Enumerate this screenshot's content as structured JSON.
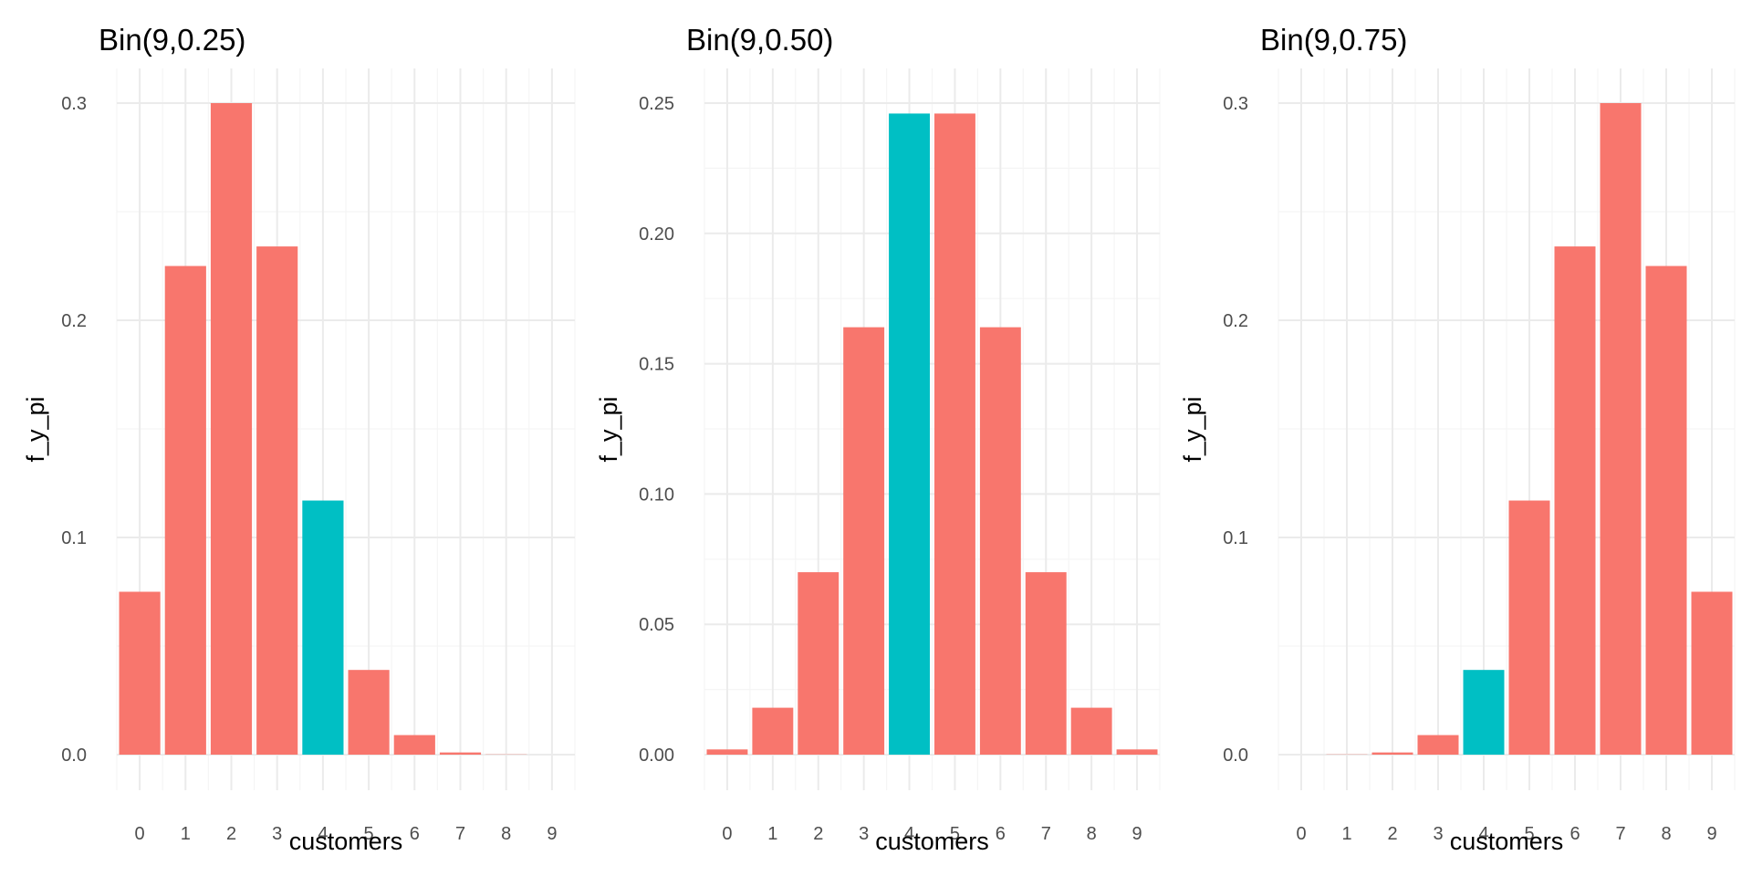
{
  "chart_data": [
    {
      "type": "bar",
      "title": "Bin(9,0.25)",
      "xlabel": "customers",
      "ylabel": "f_y_pi",
      "categories": [
        "0",
        "1",
        "2",
        "3",
        "4",
        "5",
        "6",
        "7",
        "8",
        "9"
      ],
      "values": [
        0.075,
        0.225,
        0.3,
        0.234,
        0.117,
        0.039,
        0.009,
        0.001,
        0.0001,
        0.0
      ],
      "highlight_category": "4",
      "ylim": [
        0,
        0.3
      ],
      "yticks": [
        "0.0",
        "0.1",
        "0.2",
        "0.3"
      ],
      "grid": true
    },
    {
      "type": "bar",
      "title": "Bin(9,0.50)",
      "xlabel": "customers",
      "ylabel": "f_y_pi",
      "categories": [
        "0",
        "1",
        "2",
        "3",
        "4",
        "5",
        "6",
        "7",
        "8",
        "9"
      ],
      "values": [
        0.002,
        0.018,
        0.07,
        0.164,
        0.246,
        0.246,
        0.164,
        0.07,
        0.018,
        0.002
      ],
      "highlight_category": "4",
      "ylim": [
        0,
        0.25
      ],
      "yticks": [
        "0.00",
        "0.05",
        "0.10",
        "0.15",
        "0.20",
        "0.25"
      ],
      "grid": true
    },
    {
      "type": "bar",
      "title": "Bin(9,0.75)",
      "xlabel": "customers",
      "ylabel": "f_y_pi",
      "categories": [
        "0",
        "1",
        "2",
        "3",
        "4",
        "5",
        "6",
        "7",
        "8",
        "9"
      ],
      "values": [
        0.0,
        0.0001,
        0.001,
        0.009,
        0.039,
        0.117,
        0.234,
        0.3,
        0.225,
        0.075
      ],
      "highlight_category": "4",
      "ylim": [
        0,
        0.3
      ],
      "yticks": [
        "0.0",
        "0.1",
        "0.2",
        "0.3"
      ],
      "grid": true
    }
  ],
  "colors": {
    "bar": "#F8766D",
    "highlight": "#00BFC4",
    "grid_major": "#ebebeb",
    "grid_minor": "#f5f5f5",
    "tick_text": "#4d4d4d"
  }
}
